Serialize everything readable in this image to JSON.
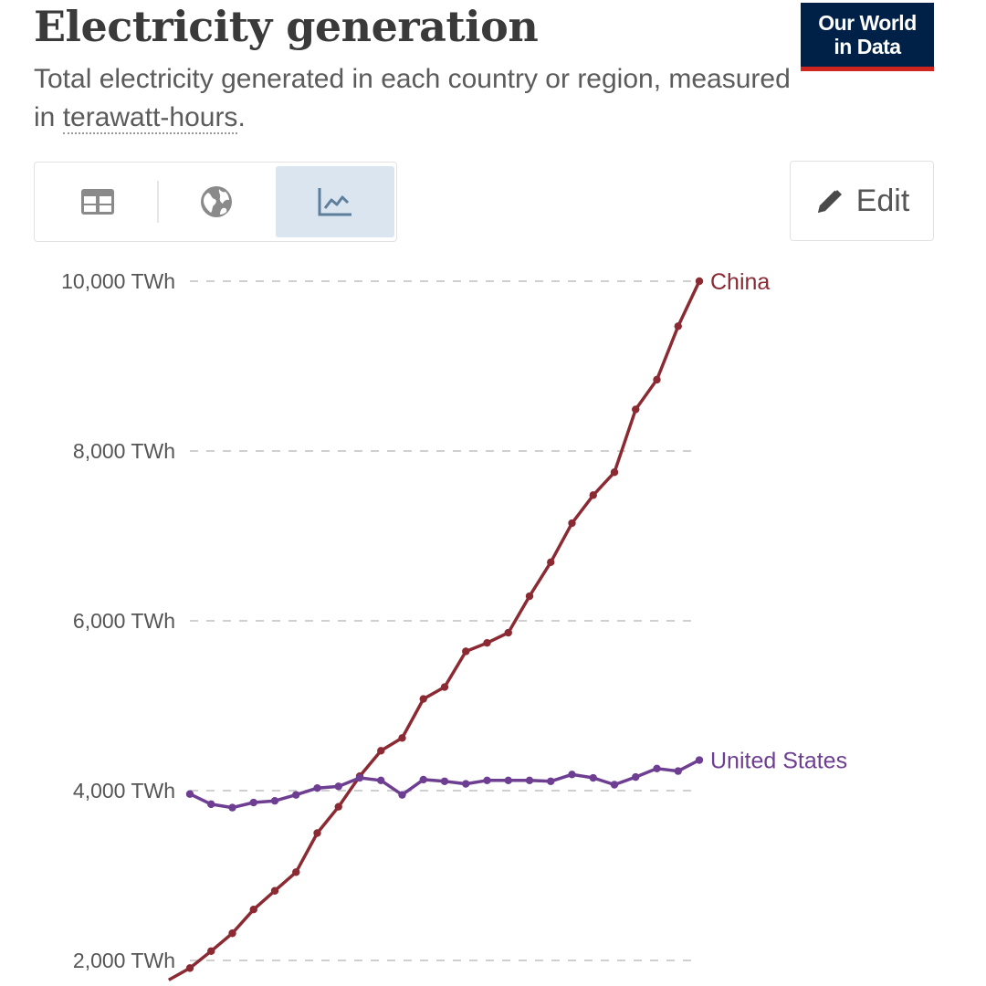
{
  "header": {
    "title": "Electricity generation",
    "subtitle_before": "Total electricity generated in each country or region, measured in ",
    "subtitle_term": "terawatt-hours",
    "subtitle_after": "."
  },
  "logo": {
    "line1": "Our World",
    "line2": "in Data"
  },
  "toolbar": {
    "edit_label": "Edit"
  },
  "colors": {
    "china": "#8b2a32",
    "united_states": "#6d3e91",
    "grid": "#d0d0d0",
    "logo_bg": "#002147",
    "logo_accent": "#ce261e",
    "active_tab": "#dbe5f0"
  },
  "chart_data": {
    "type": "line",
    "ylim": [
      1800,
      10000
    ],
    "yticks": [
      {
        "value": 10000,
        "label": "10,000 TWh"
      },
      {
        "value": 8000,
        "label": "8,000 TWh"
      },
      {
        "value": 6000,
        "label": "6,000 TWh"
      },
      {
        "value": 4000,
        "label": "4,000 TWh"
      },
      {
        "value": 2000,
        "label": "2,000 TWh"
      }
    ],
    "grid": true,
    "series": [
      {
        "name": "China",
        "values": [
          1770,
          1910,
          2110,
          2320,
          2600,
          2820,
          3040,
          3500,
          3810,
          4170,
          4470,
          4620,
          5080,
          5220,
          5640,
          5740,
          5860,
          6290,
          6690,
          7150,
          7480,
          7750,
          8490,
          8840,
          9470,
          10000
        ]
      },
      {
        "name": "United States",
        "values": [
          3960,
          3840,
          3800,
          3860,
          3880,
          3950,
          4030,
          4050,
          4150,
          4120,
          3950,
          4130,
          4110,
          4080,
          4120,
          4120,
          4120,
          4110,
          4190,
          4150,
          4070,
          4160,
          4260,
          4230,
          4360
        ]
      }
    ]
  }
}
